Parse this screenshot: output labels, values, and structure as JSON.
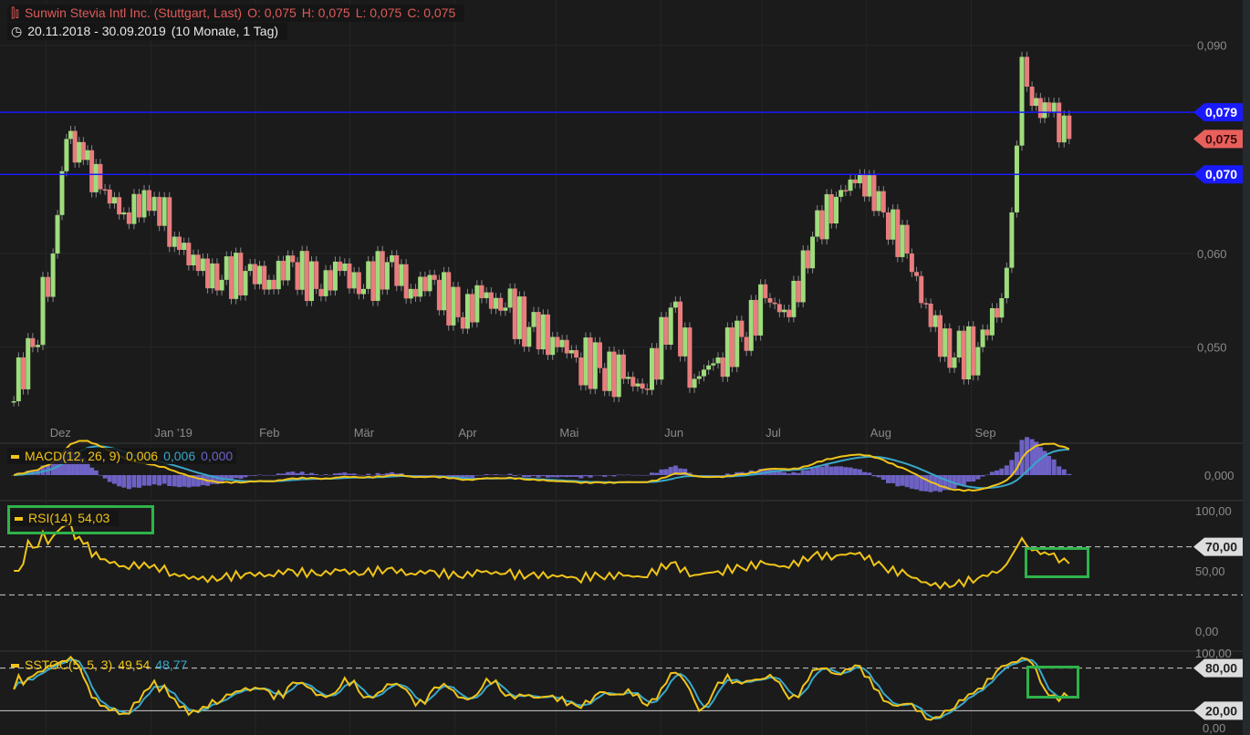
{
  "header": {
    "icon": "candlestick-icon",
    "title": "Sunwin Stevia Intl Inc. (Stuttgart, Last)",
    "ohlc": {
      "open": "O: 0,075",
      "high": "H: 0,075",
      "low": "L: 0,075",
      "close": "C: 0,075"
    },
    "range_icon": "clock-icon",
    "date_range": "20.11.2018 - 30.09.2019",
    "period": "(10 Monate, 1 Tag)"
  },
  "colors": {
    "up": "#9fdc7c",
    "down": "#e87d7d",
    "hline": "#1a1aff",
    "macd": "#f0c419",
    "signal": "#3aa6c8",
    "histogram": "#7b6fe0",
    "highlight": "#2fb34a"
  },
  "chart_data": [
    {
      "type": "candlestick",
      "scale": "log",
      "ylim": [
        0.044,
        0.098
      ],
      "yticks": [
        "0,090",
        "0,060",
        "0,050"
      ],
      "ytick_values": [
        0.09,
        0.06,
        0.05
      ],
      "xticks": [
        {
          "label": "Dez",
          "date": "2018-12-01"
        },
        {
          "label": "Jan '19",
          "date": "2019-01-01"
        },
        {
          "label": "Feb",
          "date": "2019-02-01"
        },
        {
          "label": "Mär",
          "date": "2019-03-01"
        },
        {
          "label": "Apr",
          "date": "2019-04-01"
        },
        {
          "label": "Mai",
          "date": "2019-05-01"
        },
        {
          "label": "Jun",
          "date": "2019-06-01"
        },
        {
          "label": "Jul",
          "date": "2019-07-01"
        },
        {
          "label": "Aug",
          "date": "2019-08-01"
        },
        {
          "label": "Sep",
          "date": "2019-09-01"
        }
      ],
      "horizontal_lines": [
        {
          "value": 0.079,
          "label": "0,079"
        },
        {
          "value": 0.07,
          "label": "0,070"
        }
      ],
      "last_price": {
        "value": 0.075,
        "label": "0,075"
      },
      "closes": [
        [
          "2018-11-20",
          0.045
        ],
        [
          "2018-11-27",
          0.05
        ],
        [
          "2018-12-03",
          0.06
        ],
        [
          "2018-12-07",
          0.075
        ],
        [
          "2018-12-12",
          0.072
        ],
        [
          "2018-12-17",
          0.068
        ],
        [
          "2018-12-24",
          0.065
        ],
        [
          "2019-01-02",
          0.067
        ],
        [
          "2019-01-08",
          0.062
        ],
        [
          "2019-01-15",
          0.058
        ],
        [
          "2019-01-22",
          0.057
        ],
        [
          "2019-01-29",
          0.058
        ],
        [
          "2019-02-05",
          0.057
        ],
        [
          "2019-02-12",
          0.059
        ],
        [
          "2019-02-19",
          0.056
        ],
        [
          "2019-02-26",
          0.058
        ],
        [
          "2019-03-05",
          0.056
        ],
        [
          "2019-03-12",
          0.059
        ],
        [
          "2019-03-19",
          0.056
        ],
        [
          "2019-03-26",
          0.057
        ],
        [
          "2019-04-02",
          0.053
        ],
        [
          "2019-04-09",
          0.055
        ],
        [
          "2019-04-16",
          0.054
        ],
        [
          "2019-04-23",
          0.052
        ],
        [
          "2019-04-30",
          0.051
        ],
        [
          "2019-05-07",
          0.049
        ],
        [
          "2019-05-14",
          0.048
        ],
        [
          "2019-05-21",
          0.047
        ],
        [
          "2019-05-28",
          0.046
        ],
        [
          "2019-06-04",
          0.054
        ],
        [
          "2019-06-11",
          0.047
        ],
        [
          "2019-06-18",
          0.049
        ],
        [
          "2019-06-25",
          0.051
        ],
        [
          "2019-07-02",
          0.055
        ],
        [
          "2019-07-09",
          0.053
        ],
        [
          "2019-07-16",
          0.062
        ],
        [
          "2019-07-23",
          0.067
        ],
        [
          "2019-07-30",
          0.07
        ],
        [
          "2019-08-06",
          0.065
        ],
        [
          "2019-08-13",
          0.06
        ],
        [
          "2019-08-20",
          0.052
        ],
        [
          "2019-08-27",
          0.049
        ],
        [
          "2019-09-03",
          0.05
        ],
        [
          "2019-09-10",
          0.055
        ],
        [
          "2019-09-13",
          0.065
        ],
        [
          "2019-09-16",
          0.088
        ],
        [
          "2019-09-19",
          0.08
        ],
        [
          "2019-09-24",
          0.079
        ],
        [
          "2019-09-30",
          0.075
        ]
      ]
    },
    {
      "type": "line",
      "name": "MACD(12, 26, 9)",
      "values_label": [
        "0,006",
        "0,006",
        "0,000"
      ],
      "yticks": [
        "0,000"
      ]
    },
    {
      "type": "line",
      "name": "RSI(14)",
      "value_label": "54,03",
      "ylim": [
        0,
        100
      ],
      "yticks": [
        "100,00",
        "50,00",
        "0,00"
      ],
      "levels": [
        {
          "value": 70,
          "label": "70,00"
        },
        {
          "value": 30
        }
      ]
    },
    {
      "type": "line",
      "name": "SSTOC(5, 5, 3)",
      "values_label": [
        "49,54",
        "48,77"
      ],
      "ylim": [
        0,
        100
      ],
      "yticks": [
        "100,00",
        "0,00"
      ],
      "levels": [
        {
          "value": 80,
          "label": "80,00"
        },
        {
          "value": 20,
          "label": "20,00"
        }
      ]
    }
  ]
}
